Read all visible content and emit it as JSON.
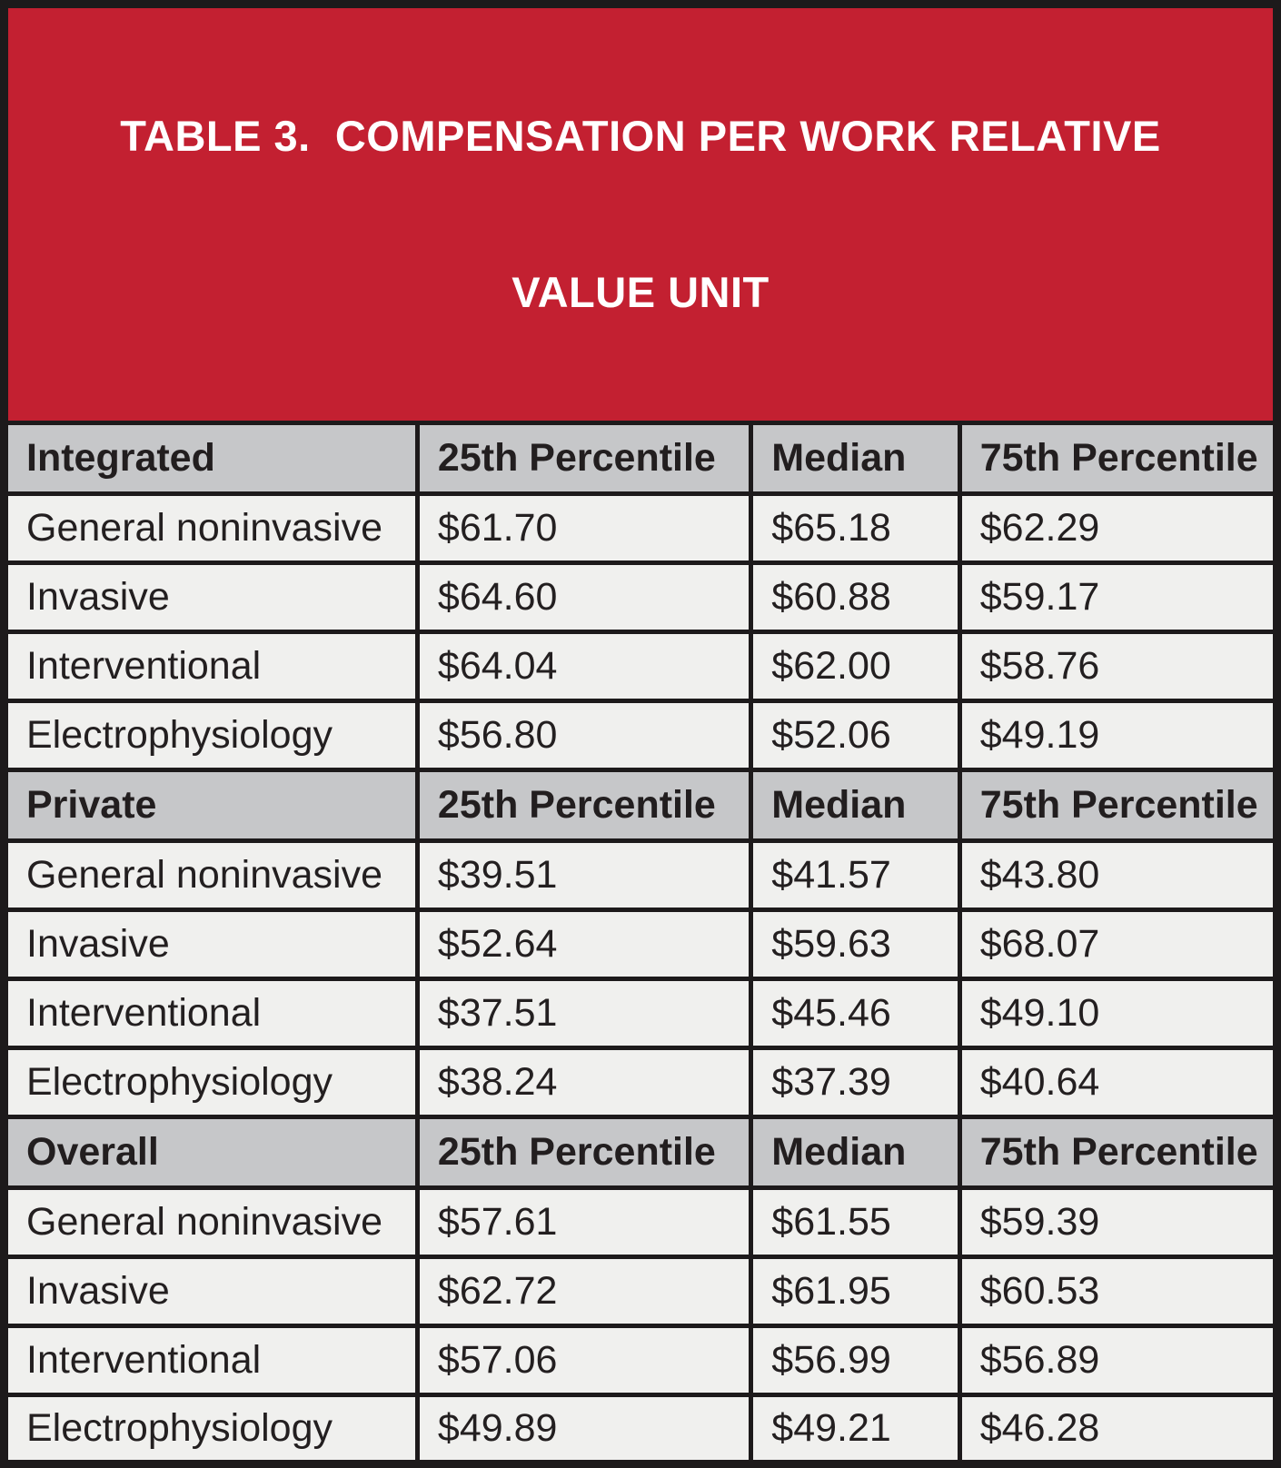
{
  "title_lines": [
    "TABLE 3.  COMPENSATION PER WORK RELATIVE",
    "VALUE UNIT"
  ],
  "columns": [
    "25th Percentile",
    "Median",
    "75th Percentile"
  ],
  "sections": [
    {
      "label": "Integrated",
      "rows": [
        {
          "label": "General noninvasive",
          "values": [
            "$61.70",
            "$65.18",
            "$62.29"
          ]
        },
        {
          "label": "Invasive",
          "values": [
            "$64.60",
            "$60.88",
            "$59.17"
          ]
        },
        {
          "label": "Interventional",
          "values": [
            "$64.04",
            "$62.00",
            "$58.76"
          ]
        },
        {
          "label": "Electrophysiology",
          "values": [
            "$56.80",
            "$52.06",
            "$49.19"
          ]
        }
      ]
    },
    {
      "label": "Private",
      "rows": [
        {
          "label": "General noninvasive",
          "values": [
            "$39.51",
            "$41.57",
            "$43.80"
          ]
        },
        {
          "label": "Invasive",
          "values": [
            "$52.64",
            "$59.63",
            "$68.07"
          ]
        },
        {
          "label": "Interventional",
          "values": [
            "$37.51",
            "$45.46",
            "$49.10"
          ]
        },
        {
          "label": "Electrophysiology",
          "values": [
            "$38.24",
            "$37.39",
            "$40.64"
          ]
        }
      ]
    },
    {
      "label": "Overall",
      "rows": [
        {
          "label": "General noninvasive",
          "values": [
            "$57.61",
            "$61.55",
            "$59.39"
          ]
        },
        {
          "label": "Invasive",
          "values": [
            "$62.72",
            "$61.95",
            "$60.53"
          ]
        },
        {
          "label": "Interventional",
          "values": [
            "$57.06",
            "$56.99",
            "$56.89"
          ]
        },
        {
          "label": "Electrophysiology",
          "values": [
            "$49.89",
            "$49.21",
            "$46.28"
          ]
        }
      ]
    }
  ],
  "colors": {
    "title_bg": "#c32031",
    "title_text": "#ffffff",
    "section_header_bg": "#c6c7c9",
    "data_cell_bg": "#f0f0ee",
    "border": "#1d1a1b",
    "text": "#231f20"
  }
}
